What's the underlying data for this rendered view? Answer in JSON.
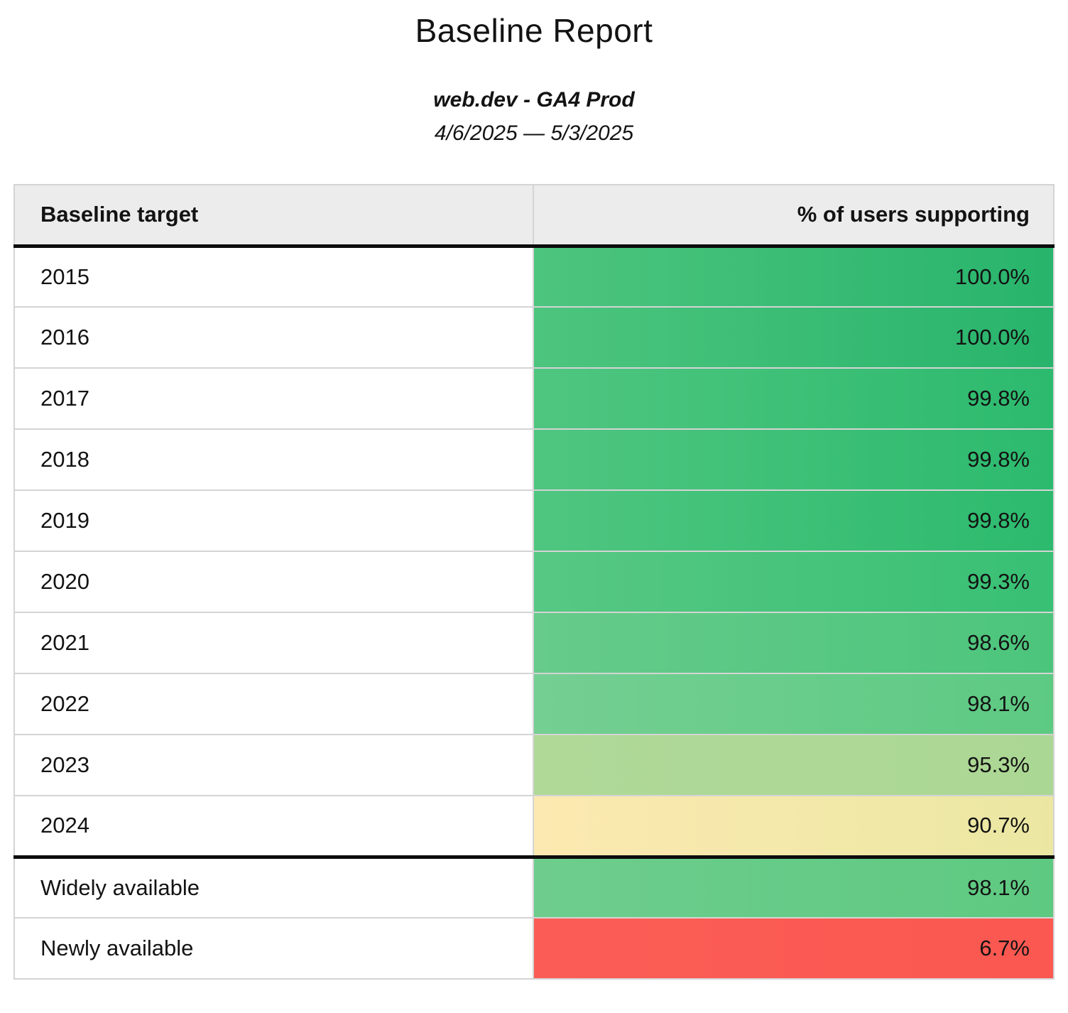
{
  "report": {
    "title": "Baseline Report",
    "subtitle": "web.dev - GA4 Prod",
    "date_range": "4/6/2025 — 5/3/2025"
  },
  "table": {
    "columns": [
      "Baseline target",
      "% of users supporting"
    ],
    "header_bg": "#ececec",
    "border_color": "#d4d4d4",
    "divider_color": "#0c0c0c",
    "rows": [
      {
        "target": "2015",
        "value": "100.0%",
        "color_left": "#4dc57e",
        "color_right": "#28b46c"
      },
      {
        "target": "2016",
        "value": "100.0%",
        "color_left": "#4dc57e",
        "color_right": "#28b46c"
      },
      {
        "target": "2017",
        "value": "99.8%",
        "color_left": "#4fc680",
        "color_right": "#2cba6e"
      },
      {
        "target": "2018",
        "value": "99.8%",
        "color_left": "#4fc680",
        "color_right": "#2cba6e"
      },
      {
        "target": "2019",
        "value": "99.8%",
        "color_left": "#4fc680",
        "color_right": "#2cba6e"
      },
      {
        "target": "2020",
        "value": "99.3%",
        "color_left": "#57c884",
        "color_right": "#38c074"
      },
      {
        "target": "2021",
        "value": "98.6%",
        "color_left": "#66cb8b",
        "color_right": "#4cc57c"
      },
      {
        "target": "2022",
        "value": "98.1%",
        "color_left": "#74cf92",
        "color_right": "#5dca83"
      },
      {
        "target": "2023",
        "value": "95.3%",
        "color_left": "#b0d998",
        "color_right": "#abd794"
      },
      {
        "target": "2024",
        "value": "90.7%",
        "color_left": "#fce9b1",
        "color_right": "#ebe7a2"
      },
      {
        "target": "Widely available",
        "value": "98.1%",
        "color_left": "#6ecd8d",
        "color_right": "#5ec981"
      },
      {
        "target": "Newly available",
        "value": "6.7%",
        "color_left": "#fb5d56",
        "color_right": "#fa5850"
      }
    ]
  },
  "chart_data": {
    "type": "table",
    "title": "Baseline Report",
    "subtitle": "web.dev - GA4 Prod",
    "date_range": "4/6/2025 — 5/3/2025",
    "columns": [
      "Baseline target",
      "% of users supporting"
    ],
    "categories": [
      "2015",
      "2016",
      "2017",
      "2018",
      "2019",
      "2020",
      "2021",
      "2022",
      "2023",
      "2024",
      "Widely available",
      "Newly available"
    ],
    "values": [
      100.0,
      100.0,
      99.8,
      99.8,
      99.8,
      99.3,
      98.6,
      98.1,
      95.3,
      90.7,
      98.1,
      6.7
    ],
    "value_unit": "%",
    "color_scale": "red-yellow-green conditional formatting on value column",
    "notes": "Thick black rule separates header row and separates year rows (2015-2024) from availability rows (Widely/Newly available)"
  }
}
